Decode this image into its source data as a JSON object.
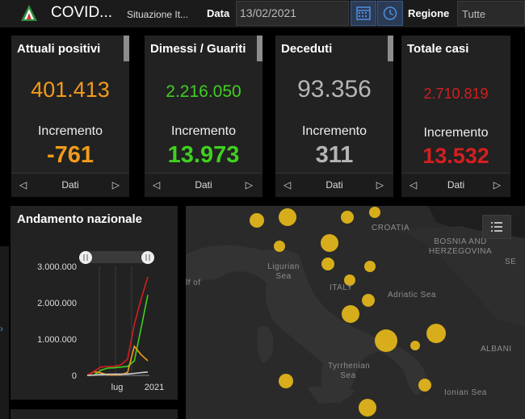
{
  "header": {
    "title": "COVID...",
    "subtitle": "Situazione It...",
    "date_label": "Data",
    "date_value": "13/02/2021",
    "region_label": "Regione",
    "region_value": "Tutte"
  },
  "cards": [
    {
      "title": "Attuali positivi",
      "value": "401.413",
      "inc_label": "Incremento",
      "inc_value": "-761",
      "pager_label": "Dati",
      "color": "#f39b1b"
    },
    {
      "title": "Dimessi / Guariti",
      "value": "2.216.050",
      "inc_label": "Incremento",
      "inc_value": "13.973",
      "pager_label": "Dati",
      "color": "#3fd01f"
    },
    {
      "title": "Deceduti",
      "value": "93.356",
      "inc_label": "Incremento",
      "inc_value": "311",
      "pager_label": "Dati",
      "color": "#b5b5b5"
    },
    {
      "title": "Totale casi",
      "value": "2.710.819",
      "inc_label": "Incremento",
      "inc_value": "13.532",
      "pager_label": "Dati",
      "color": "#d41f1f"
    }
  ],
  "chart": {
    "title": "Andamento nazionale"
  },
  "chart_data": {
    "type": "line",
    "y_ticks": [
      "3.000.000",
      "2.000.000",
      "1.000.000",
      "0"
    ],
    "ylim": [
      0,
      3000000
    ],
    "x_ticks": [
      "lug",
      "2021"
    ],
    "series": [
      {
        "color": "#3fd01f",
        "values": [
          0,
          5000,
          140000,
          200000,
          210000,
          230000,
          250000,
          400000,
          1300000,
          2216050
        ]
      },
      {
        "color": "#f39b1b",
        "values": [
          0,
          100000,
          70000,
          15000,
          12000,
          20000,
          80000,
          800000,
          570000,
          401413
        ]
      },
      {
        "color": "#d41f1f",
        "values": [
          0,
          110000,
          230000,
          245000,
          250000,
          290000,
          450000,
          1400000,
          2100000,
          2710819
        ]
      },
      {
        "color": "#cccccc",
        "values": [
          0,
          8000,
          27000,
          34000,
          35000,
          36000,
          38000,
          55000,
          75000,
          93356
        ]
      }
    ]
  },
  "map": {
    "labels": [
      "CROATIA",
      "BOSNIA AND HERZEGOVINA",
      "SE",
      "Ligurian Sea",
      "lf of",
      "ITALY",
      "Adriatic Sea",
      "Tyrrhenian Sea",
      "ALBANI",
      "Ionian Sea"
    ],
    "point_color": "#e6b91a"
  },
  "icons": [
    "covid-logo-icon",
    "calendar-icon",
    "clock-icon",
    "list-legend-icon",
    "chevron-left-icon",
    "chevron-right-icon",
    "slider-handle-icon"
  ]
}
